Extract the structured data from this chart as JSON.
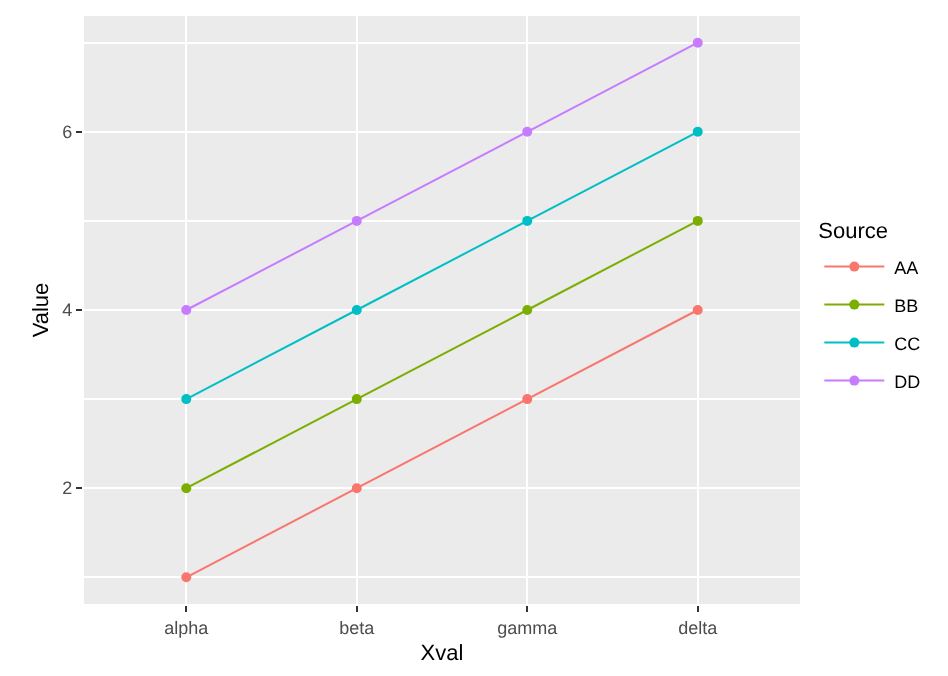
{
  "chart_data": {
    "type": "line",
    "xlabel": "Xval",
    "ylabel": "Value",
    "legend_title": "Source",
    "categories": [
      "alpha",
      "beta",
      "gamma",
      "delta"
    ],
    "series": [
      {
        "name": "AA",
        "color": "#f8766d",
        "values": [
          1,
          2,
          3,
          4
        ]
      },
      {
        "name": "BB",
        "color": "#7cae00",
        "values": [
          2,
          3,
          4,
          5
        ]
      },
      {
        "name": "CC",
        "color": "#00bfc4",
        "values": [
          3,
          4,
          5,
          6
        ]
      },
      {
        "name": "DD",
        "color": "#c77cff",
        "values": [
          4,
          5,
          6,
          7
        ]
      }
    ],
    "ylim": [
      0.7,
      7.3
    ],
    "yticks": [
      2,
      4,
      6
    ],
    "grid": true,
    "legend": "right",
    "marker": "circle",
    "line_style": "solid"
  }
}
